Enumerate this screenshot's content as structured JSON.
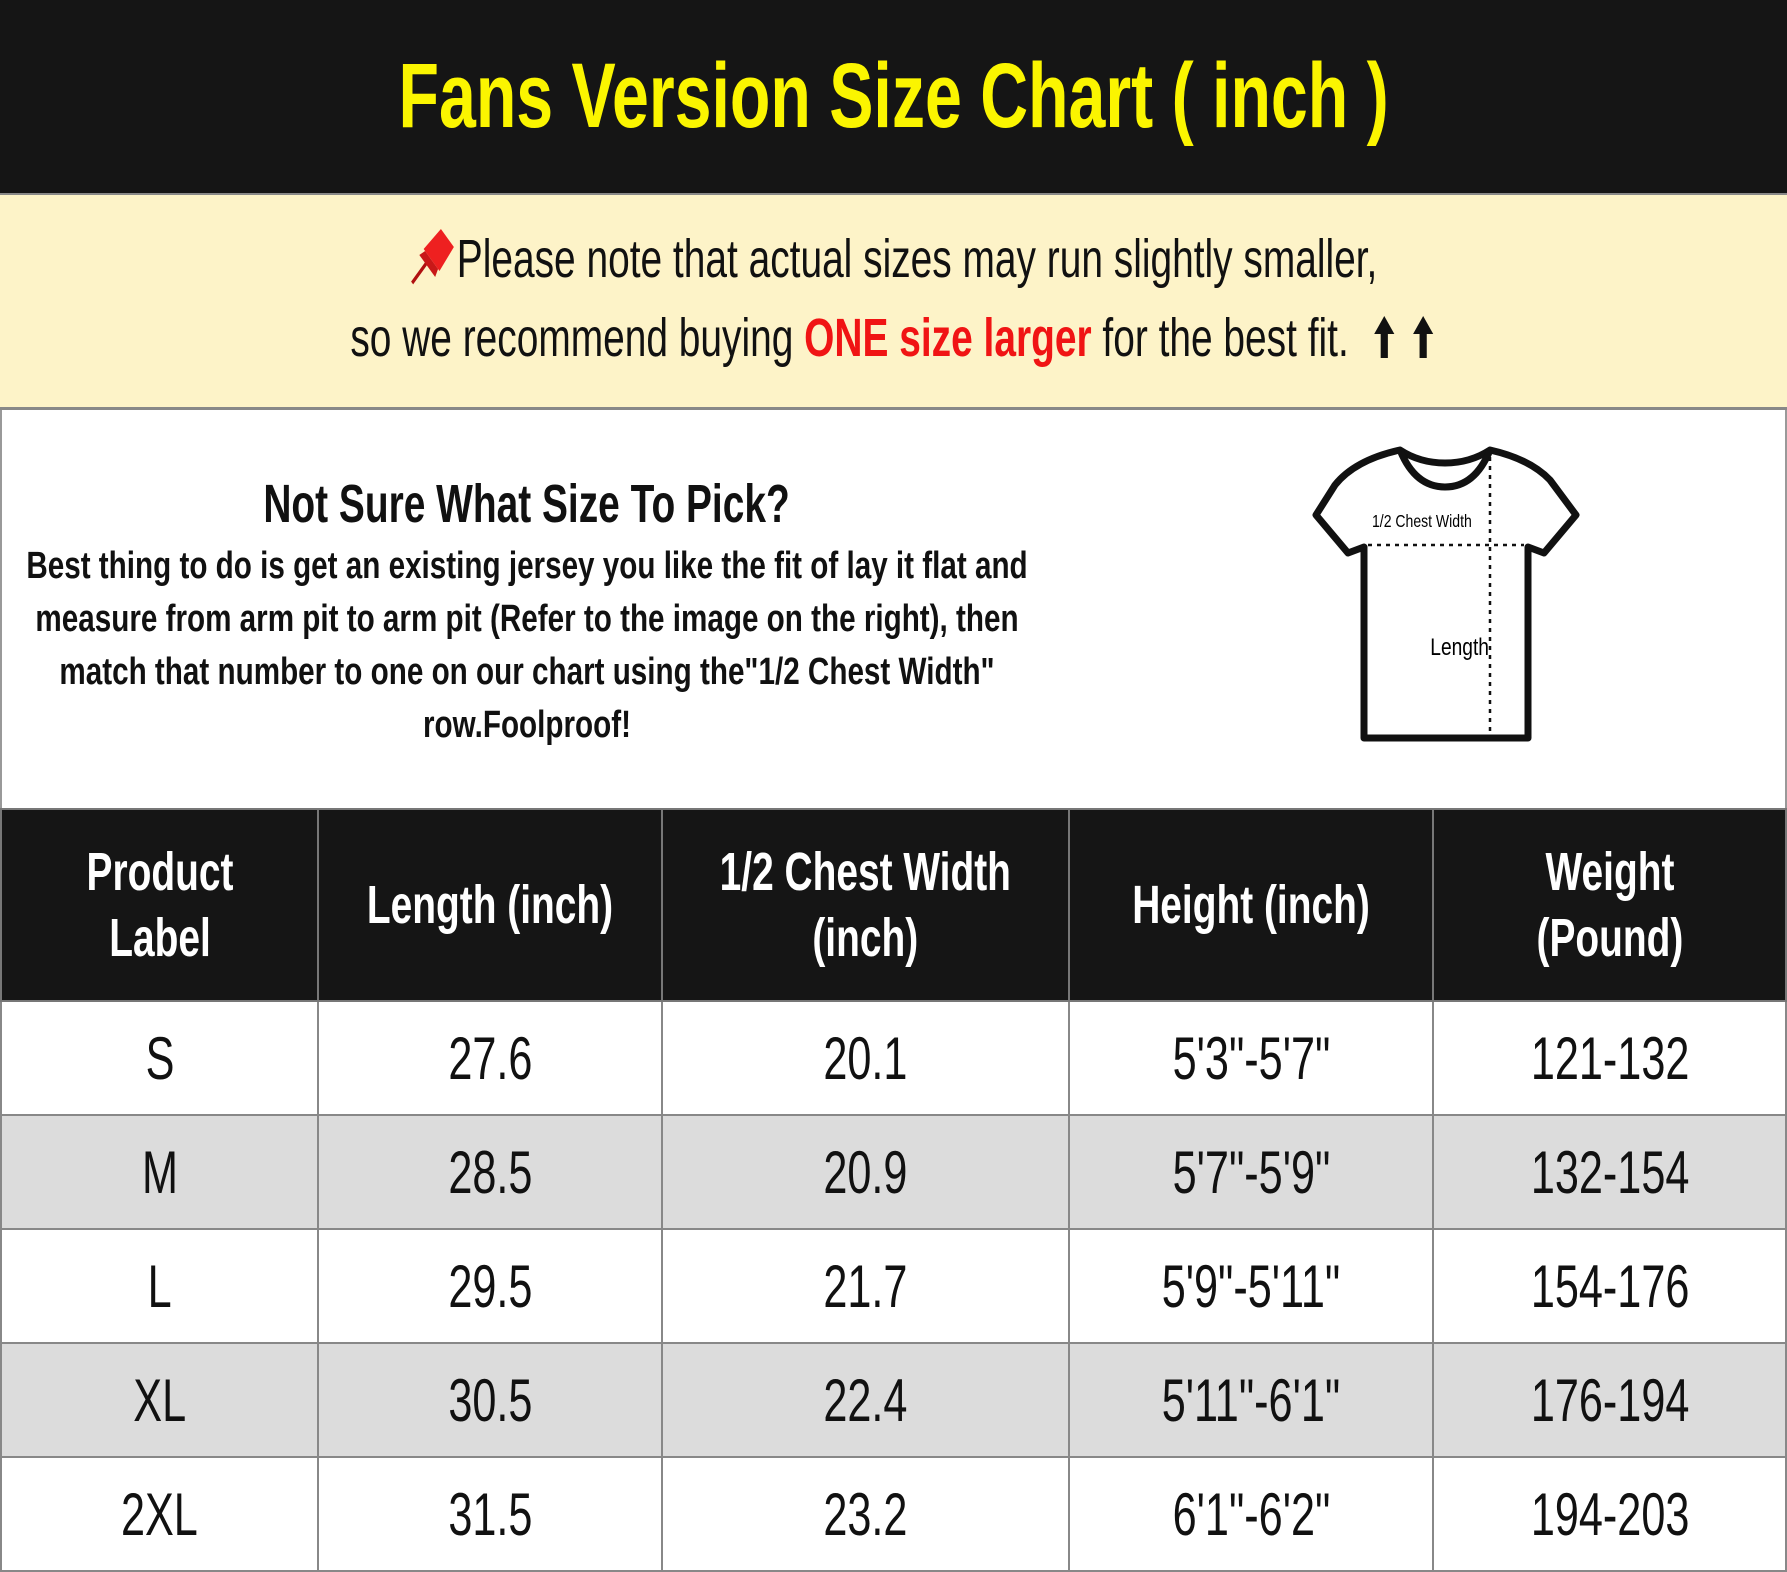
{
  "title": "Fans Version Size Chart ( inch )",
  "note": {
    "line1": "Please note that actual sizes may run slightly smaller,",
    "line2_pre": "so we recommend buying ",
    "line2_highlight": "ONE size larger",
    "line2_post": " for the best fit.",
    "pin_icon": "pushpin-icon",
    "arrow_icon": "up-arrow-icon",
    "highlight_color": "#f01414"
  },
  "info": {
    "heading": "Not Sure What Size To Pick?",
    "paragraph": "Best thing to do is get an existing jersey you like the fit of lay it flat and measure from arm pit to arm pit (Refer to the image on the right), then match that number to one on our chart using the\"1/2 Chest Width\" row.Foolproof!",
    "diagram": {
      "chest_label": "1/2 Chest Width",
      "length_label": "Length"
    }
  },
  "table": {
    "headers": [
      [
        "Product",
        "Label"
      ],
      [
        "Length (inch)"
      ],
      [
        "1/2 Chest Width",
        "(inch)"
      ],
      [
        "Height (inch)"
      ],
      [
        "Weight",
        "(Pound)"
      ]
    ],
    "rows": [
      [
        "S",
        "27.6",
        "20.1",
        "5'3\"-5'7\"",
        "121-132"
      ],
      [
        "M",
        "28.5",
        "20.9",
        "5'7\"-5'9\"",
        "132-154"
      ],
      [
        "L",
        "29.5",
        "21.7",
        "5'9\"-5'11\"",
        "154-176"
      ],
      [
        "XL",
        "30.5",
        "22.4",
        "5'11\"-6'1\"",
        "176-194"
      ],
      [
        "2XL",
        "31.5",
        "23.2",
        "6'1\"-6'2\"",
        "194-203"
      ]
    ]
  },
  "colors": {
    "title": "#fbf500",
    "header_bg": "#151515",
    "note_bg": "#fdf3c8",
    "alt_row": "#dcdcdc"
  }
}
